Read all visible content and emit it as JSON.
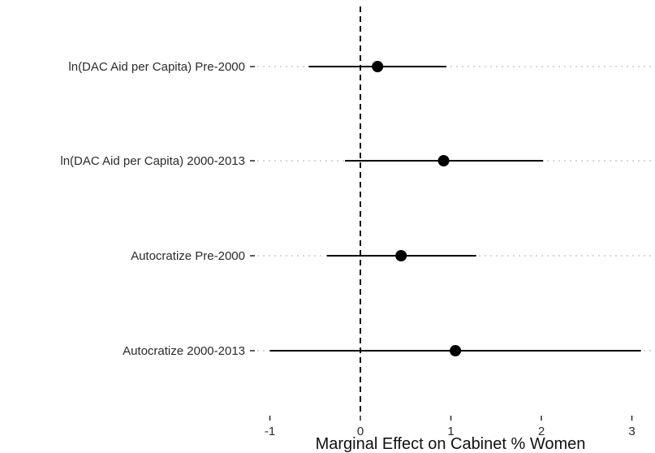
{
  "chart_data": {
    "type": "scatter",
    "subtype": "coefficient-plot",
    "title": "",
    "xlabel": "Marginal Effect on Cabinet % Women",
    "ylabel": "",
    "xlim": [
      -1.1,
      3.15
    ],
    "xticks": [
      -1,
      0,
      1,
      2,
      3
    ],
    "xtick_labels": [
      "-1",
      "0",
      "1",
      "2",
      "3"
    ],
    "reference_line": {
      "x": 0,
      "style": "dashed"
    },
    "grid": "dotted horizontal guides at each row",
    "rows": [
      {
        "label": "ln(DAC Aid per Capita) Pre-2000",
        "estimate": 0.19,
        "lower": -0.57,
        "upper": 0.95
      },
      {
        "label": "ln(DAC Aid per Capita) 2000-2013",
        "estimate": 0.92,
        "lower": -0.17,
        "upper": 2.02
      },
      {
        "label": "Autocratize Pre-2000",
        "estimate": 0.45,
        "lower": -0.37,
        "upper": 1.28
      },
      {
        "label": "Autocratize 2000-2013",
        "estimate": 1.05,
        "lower": -1.0,
        "upper": 3.1
      }
    ],
    "colors": {
      "point": "#000000",
      "interval": "#000000",
      "guide": "#c8c8c8",
      "axis_text": "#2b2b2b"
    }
  }
}
